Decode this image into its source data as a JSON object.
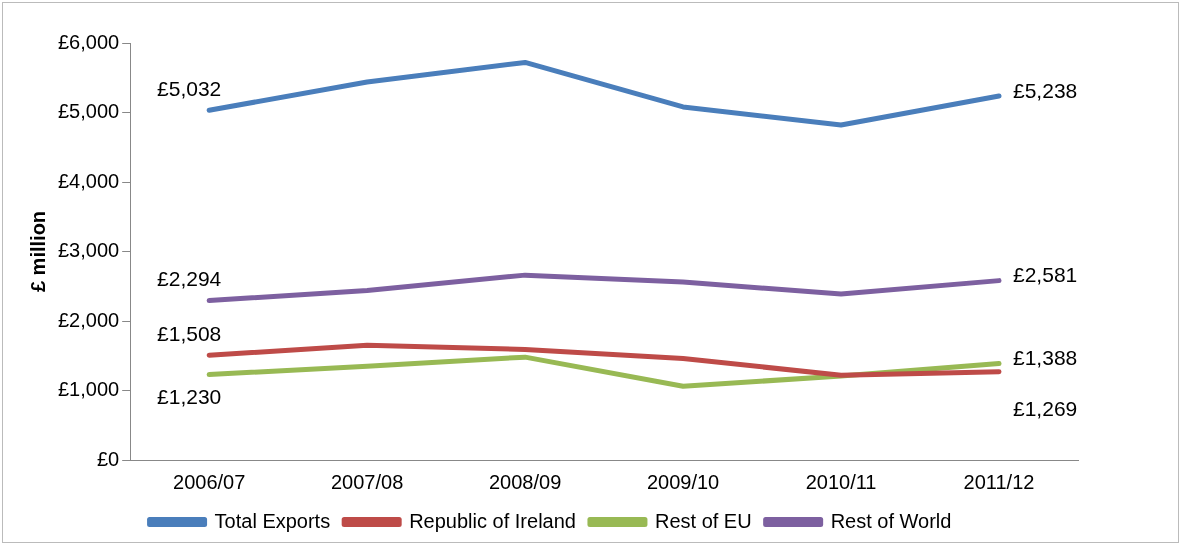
{
  "chart_data": {
    "type": "line",
    "ylabel": "£ million",
    "categories": [
      "2006/07",
      "2007/08",
      "2008/09",
      "2009/10",
      "2010/11",
      "2011/12"
    ],
    "ylim": [
      0,
      6000
    ],
    "yticks": [
      {
        "value": 0,
        "label": "£0"
      },
      {
        "value": 1000,
        "label": "£1,000"
      },
      {
        "value": 2000,
        "label": "£2,000"
      },
      {
        "value": 3000,
        "label": "£3,000"
      },
      {
        "value": 4000,
        "label": "£4,000"
      },
      {
        "value": 5000,
        "label": "£5,000"
      },
      {
        "value": 6000,
        "label": "£6,000"
      }
    ],
    "grid": false,
    "legend": "bottom",
    "marker": "none",
    "line_style": "solid",
    "series": [
      {
        "name": "Total Exports",
        "color": "#4a7ebb",
        "values": [
          5032,
          5440,
          5720,
          5080,
          4820,
          5238
        ],
        "value_labels": [
          "£5,032",
          null,
          null,
          null,
          null,
          "£5,238"
        ]
      },
      {
        "name": "Republic of Ireland",
        "color": "#be4b48",
        "values": [
          1508,
          1650,
          1590,
          1460,
          1220,
          1269
        ],
        "value_labels": [
          "£1,508",
          null,
          null,
          null,
          null,
          "£1,269"
        ]
      },
      {
        "name": "Rest of EU",
        "color": "#98b954",
        "values": [
          1230,
          1350,
          1480,
          1060,
          1210,
          1388
        ],
        "value_labels": [
          "£1,230",
          null,
          null,
          null,
          null,
          "£1,388"
        ]
      },
      {
        "name": "Rest of World",
        "color": "#7d60a0",
        "values": [
          2294,
          2440,
          2660,
          2560,
          2390,
          2581
        ],
        "value_labels": [
          "£2,294",
          null,
          null,
          null,
          null,
          "£2,581"
        ]
      }
    ]
  }
}
